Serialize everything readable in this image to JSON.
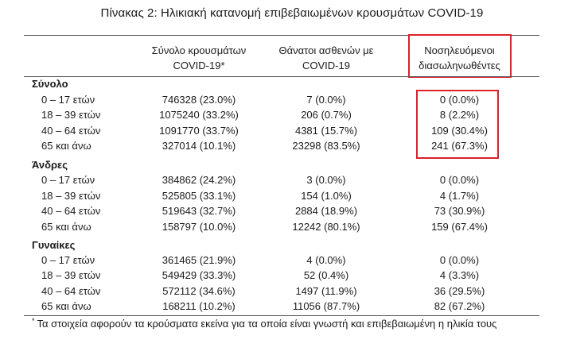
{
  "title": "Πίνακας 2: Ηλικιακή κατανομή επιβεβαιωμένων κρουσμάτων COVID-19",
  "columns": [
    {
      "line1": "Σύνολο κρουσμάτων",
      "line2": "COVID-19*"
    },
    {
      "line1": "Θάνατοι ασθενών με",
      "line2": "COVID-19"
    },
    {
      "line1": "Νοσηλευόμενοι",
      "line2": "διασωληνωθέντες"
    }
  ],
  "groups": [
    {
      "label": "Σύνολο",
      "rows": [
        {
          "age": "0 – 17 ετών",
          "cases": "746328 (23.0%)",
          "deaths": "7 (0.0%)",
          "intubated": "0 (0.0%)"
        },
        {
          "age": "18 – 39 ετών",
          "cases": "1075240 (33.2%)",
          "deaths": "206 (0.7%)",
          "intubated": "8 (2.2%)"
        },
        {
          "age": "40 – 64 ετών",
          "cases": "1091770 (33.7%)",
          "deaths": "4381 (15.7%)",
          "intubated": "109 (30.4%)"
        },
        {
          "age": "65 και άνω",
          "cases": "327014 (10.1%)",
          "deaths": "23298 (83.5%)",
          "intubated": "241 (67.3%)"
        }
      ]
    },
    {
      "label": "Άνδρες",
      "rows": [
        {
          "age": "0 – 17 ετών",
          "cases": "384862 (24.2%)",
          "deaths": "3 (0.0%)",
          "intubated": "0 (0.0%)"
        },
        {
          "age": "18 – 39 ετών",
          "cases": "525805 (33.1%)",
          "deaths": "154 (1.0%)",
          "intubated": "4 (1.7%)"
        },
        {
          "age": "40 – 64 ετών",
          "cases": "519643 (32.7%)",
          "deaths": "2884 (18.9%)",
          "intubated": "73 (30.9%)"
        },
        {
          "age": "65 και άνω",
          "cases": "158797 (10.0%)",
          "deaths": "12242 (80.1%)",
          "intubated": "159 (67.4%)"
        }
      ]
    },
    {
      "label": "Γυναίκες",
      "rows": [
        {
          "age": "0 – 17 ετών",
          "cases": "361465 (21.9%)",
          "deaths": "4 (0.0%)",
          "intubated": "0 (0.0%)"
        },
        {
          "age": "18 – 39 ετών",
          "cases": "549429 (33.3%)",
          "deaths": "52 (0.4%)",
          "intubated": "4 (3.3%)"
        },
        {
          "age": "40 – 64 ετών",
          "cases": "572112 (34.6%)",
          "deaths": "1497 (11.9%)",
          "intubated": "36 (29.5%)"
        },
        {
          "age": "65 και άνω",
          "cases": "168211 (10.2%)",
          "deaths": "11056 (87.7%)",
          "intubated": "82 (67.2%)"
        }
      ]
    }
  ],
  "footnote": {
    "mark": "*",
    "text": "Τα στοιχεία αφορούν τα κρούσματα εκείνα για τα οποία είναι γνωστή και επιβεβαιωμένη η ηλικία τους"
  },
  "colors": {
    "highlight_box": "#e0202a",
    "rules": "#555555"
  }
}
